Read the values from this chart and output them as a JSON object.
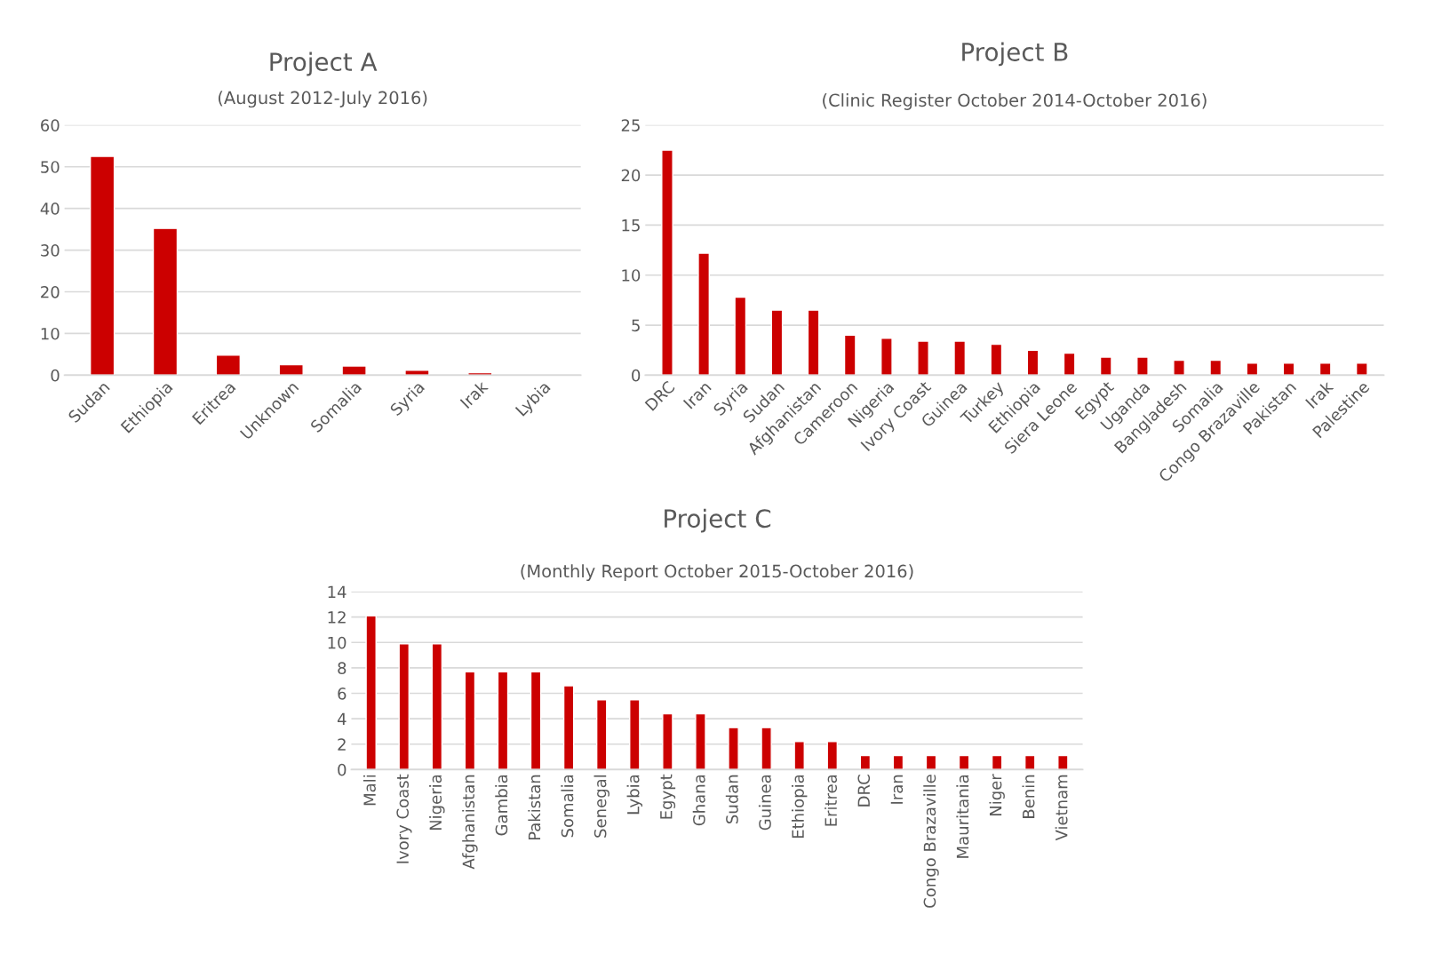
{
  "chart_data": [
    {
      "type": "bar",
      "title": "Project A",
      "subtitle": "(August 2012-July 2016)",
      "categories": [
        "Sudan",
        "Ethiopia",
        "Eritrea",
        "Unknown",
        "Somalia",
        "Syria",
        "Irak",
        "Lybia"
      ],
      "values": [
        52.5,
        35.2,
        4.8,
        2.5,
        2.2,
        1.2,
        0.6,
        null
      ],
      "color": "#cc0000",
      "ylim": [
        0,
        60
      ],
      "yticks": [
        0,
        10,
        20,
        30,
        40,
        50,
        60
      ],
      "grid": "y",
      "legend": false
    },
    {
      "type": "bar",
      "title": "Project B",
      "subtitle": "(Clinic Register October 2014-October 2016)",
      "categories": [
        "DRC",
        "Iran",
        "Syria",
        "Sudan",
        "Afghanistan",
        "Cameroon",
        "Nigeria",
        "Ivory Coast",
        "Guinea",
        "Turkey",
        "Ethiopia",
        "Siera Leone",
        "Egypt",
        "Uganda",
        "Bangladesh",
        "Somalia",
        "Congo Brazaville",
        "Pakistan",
        "Irak",
        "Palestine"
      ],
      "values": [
        22.5,
        12.2,
        7.8,
        6.5,
        6.5,
        4.0,
        3.7,
        3.4,
        3.4,
        3.1,
        2.5,
        2.2,
        1.8,
        1.8,
        1.5,
        1.5,
        1.2,
        1.2,
        1.2,
        1.2
      ],
      "color": "#cc0000",
      "ylim": [
        0,
        25
      ],
      "yticks": [
        0,
        5,
        10,
        15,
        20,
        25
      ],
      "grid": "y",
      "legend": false
    },
    {
      "type": "bar",
      "title": "Project C",
      "subtitle": "(Monthly Report October 2015-October 2016)",
      "categories": [
        "Mali",
        "Ivory Coast",
        "Nigeria",
        "Afghanistan",
        "Gambia",
        "Pakistan",
        "Somalia",
        "Senegal",
        "Lybia",
        "Egypt",
        "Ghana",
        "Sudan",
        "Guinea",
        "Ethiopia",
        "Eritrea",
        "DRC",
        "Iran",
        "Congo Brazaville",
        "Mauritania",
        "Niger",
        "Benin",
        "Vietnam"
      ],
      "values": [
        12.1,
        9.9,
        9.9,
        7.7,
        7.7,
        7.7,
        6.6,
        5.5,
        5.5,
        4.4,
        4.4,
        3.3,
        3.3,
        2.2,
        2.2,
        1.1,
        1.1,
        1.1,
        1.1,
        1.1,
        1.1,
        1.1
      ],
      "color": "#cc0000",
      "ylim": [
        0,
        14
      ],
      "yticks": [
        0,
        2,
        4,
        6,
        8,
        10,
        12,
        14
      ],
      "grid": "y",
      "legend": false
    }
  ]
}
